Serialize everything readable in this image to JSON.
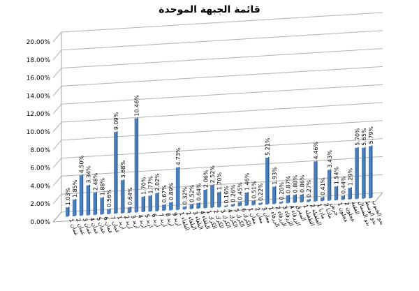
{
  "chart_data": {
    "type": "bar",
    "title": "قائمة الجبهة الموحدة",
    "ylim": [
      0,
      20
    ],
    "yticks": [
      "0.00%",
      "2.00%",
      "4.00%",
      "6.00%",
      "8.00%",
      "10.00%",
      "12.00%",
      "14.00%",
      "16.00%",
      "18.00%",
      "20.00%"
    ],
    "grid": true,
    "bar_color": "#4a7ebb",
    "categories": [
      "عمان 1",
      "عمان 2",
      "عمان 3",
      "عمان 4",
      "عمان 5",
      "عمان 6",
      "عمان 7",
      "اربد 1",
      "اربد 2",
      "اربد 3",
      "اربد 4",
      "اربد 5",
      "اربد 6",
      "اربد 7",
      "اربد 8",
      "اربد 9",
      "البلقاء 1",
      "البلقاء 2",
      "البلقاء 3",
      "البلقاء 4",
      "الكرك 1",
      "الكرك 2",
      "الكرك 3",
      "الكرك 4",
      "الكرك 5",
      "الكرك 6",
      "معان 1",
      "معان 2",
      "معان 3",
      "الزرقاء 1",
      "الزرقاء 2",
      "الزرقاء 3",
      "الزرقاء 4",
      "المفرق",
      "الطفيلة 1",
      "الطفيلة 2",
      "مادبا 1",
      "مادبا 2",
      "جرش",
      "عجلون 1",
      "عجلون 2",
      "العقبة",
      "بدو الشمال",
      "بدو الوسط",
      "بدو الجنوب"
    ],
    "values": [
      1.03,
      1.85,
      4.5,
      3.34,
      2.48,
      1.88,
      0.56,
      9.09,
      3.68,
      0.64,
      10.46,
      1.7,
      1.77,
      2.02,
      0.67,
      0.89,
      4.73,
      0.32,
      0.52,
      0.64,
      2.06,
      2.52,
      1.7,
      0.16,
      0.26,
      0.45,
      1.46,
      0.51,
      0.22,
      5.21,
      1.93,
      0.2,
      0.87,
      0.88,
      0.86,
      0.27,
      4.46,
      0.41,
      3.43,
      1.54,
      0.44,
      1.29,
      5.7,
      5.65,
      5.79
    ],
    "labels": [
      "1.03%",
      "1.85%",
      "4.50%",
      "3.34%",
      "2.48%",
      "1.88%",
      "0.56%",
      "9.09%",
      "3.68%",
      "0.64%",
      "10.46%",
      "1.70%",
      "1.77%",
      "2.02%",
      "0.67%",
      "0.89%",
      "4.73%",
      "0.32%",
      "0.52%",
      "0.64%",
      "2.06%",
      "2.52%",
      "1.70%",
      "0.16%",
      "0.26%",
      "0.45%",
      "1.46%",
      "0.51%",
      "0.22%",
      "5.21%",
      "1.93%",
      "0.20%",
      "0.87%",
      "0.88%",
      "0.86%",
      "0.27%",
      "4.46%",
      "0.41%",
      "3.43%",
      "1.54%",
      "0.44%",
      "1.29%",
      "5.70%",
      "5.65%",
      "5.79%"
    ]
  }
}
